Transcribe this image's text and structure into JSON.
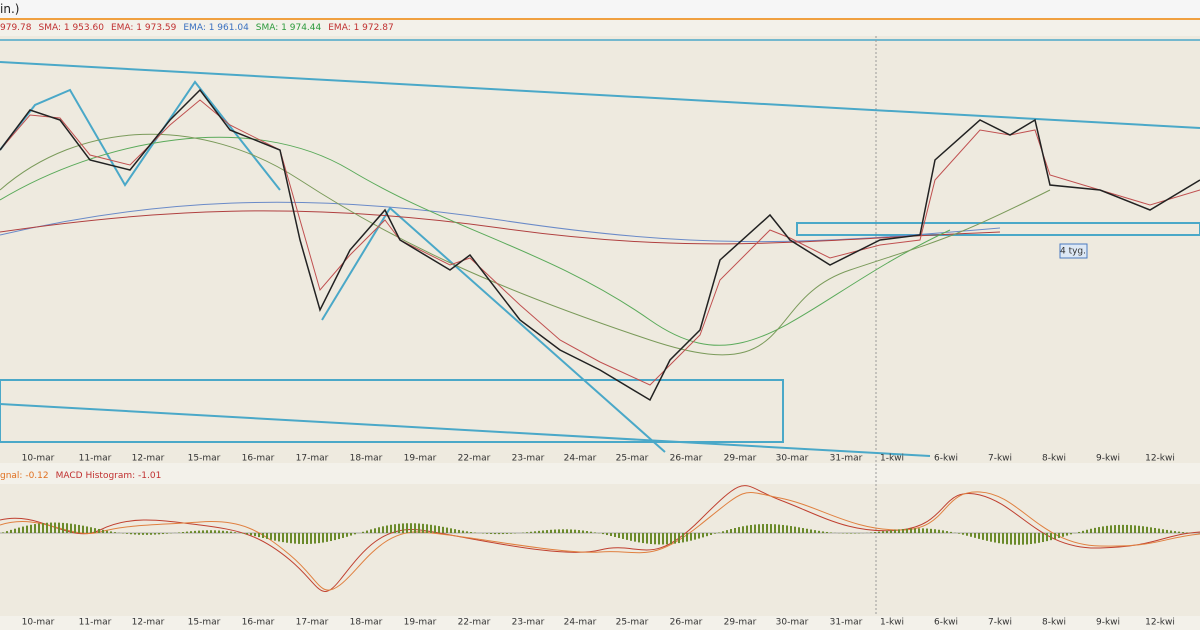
{
  "header": {
    "title": "in.)"
  },
  "price_legend": [
    {
      "text": "979.78",
      "color": "#c03030"
    },
    {
      "text": "SMA: 1 953.60",
      "color": "#c03030"
    },
    {
      "text": "EMA: 1 973.59",
      "color": "#c03030"
    },
    {
      "text": "EMA: 1 961.04",
      "color": "#3a70c0"
    },
    {
      "text": "SMA: 1 974.44",
      "color": "#2c9a3c"
    },
    {
      "text": "EMA: 1 972.87",
      "color": "#c03030"
    }
  ],
  "macd_legend": [
    {
      "text": "gnal: -0.12",
      "color": "#e07020"
    },
    {
      "text": "MACD Histogram: -1.01",
      "color": "#c03030"
    }
  ],
  "dates": [
    "10-mar",
    "11-mar",
    "12-mar",
    "15-mar",
    "16-mar",
    "17-mar",
    "18-mar",
    "19-mar",
    "22-mar",
    "23-mar",
    "24-mar",
    "25-mar",
    "26-mar",
    "29-mar",
    "30-mar",
    "31-mar",
    "1-kwi",
    "6-kwi",
    "7-kwi",
    "8-kwi",
    "9-kwi",
    "12-kwi"
  ],
  "annotation": "4 tyg."
}
